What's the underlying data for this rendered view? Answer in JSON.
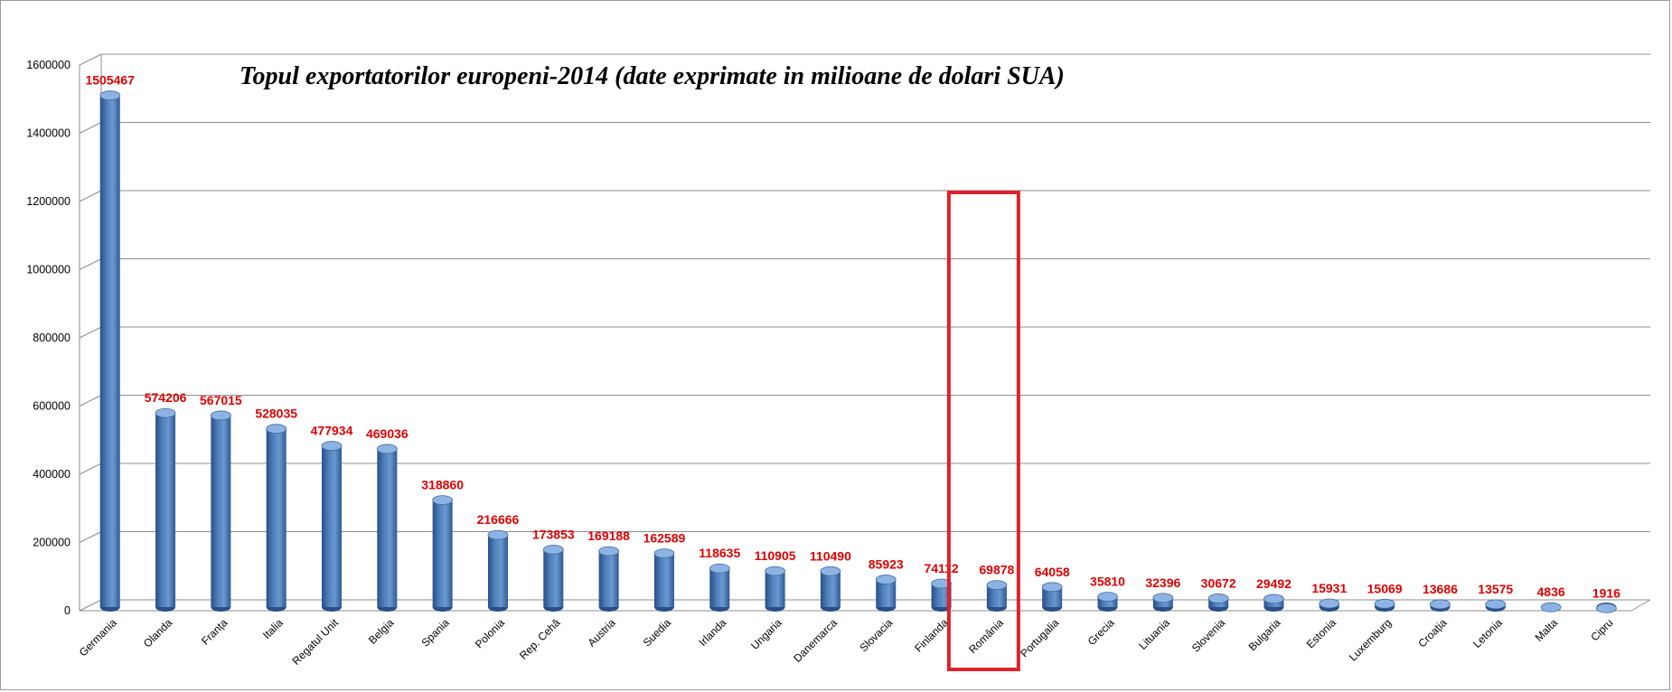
{
  "chart_data": {
    "type": "bar",
    "title": "Topul exportatorilor europeni-2014 (date exprimate in milioane de dolari SUA)",
    "xlabel": "",
    "ylabel": "",
    "ylim": [
      0,
      1600000
    ],
    "yticks": [
      "0",
      "200000",
      "400000",
      "600000",
      "800000",
      "1000000",
      "1200000",
      "1400000",
      "1600000"
    ],
    "categories": [
      "Germania",
      "Olanda",
      "Franța",
      "Italia",
      "Regatul Unit",
      "Belgia",
      "Spania",
      "Polonia",
      "Rep. Cehă",
      "Austria",
      "Suedia",
      "Irlanda",
      "Ungaria",
      "Danemarca",
      "Slovacia",
      "Finlanda",
      "România",
      "Portugalia",
      "Grecia",
      "Lituania",
      "Slovenia",
      "Bulgaria",
      "Estonia",
      "Luxemburg",
      "Croația",
      "Letonia",
      "Malta",
      "Cipru"
    ],
    "values": [
      1505467,
      574206,
      567015,
      528035,
      477934,
      469036,
      318860,
      216666,
      173853,
      169188,
      162589,
      118635,
      110905,
      110490,
      85923,
      74112,
      69878,
      64058,
      35810,
      32396,
      30672,
      29492,
      15931,
      15069,
      13686,
      13575,
      4836,
      1916
    ],
    "data_labels": [
      "1505467",
      "574206",
      "567015",
      "528035",
      "477934",
      "469036",
      "318860",
      "216666",
      "173853",
      "169188",
      "162589",
      "118635",
      "110905",
      "110490",
      "85923",
      "74112",
      "69878",
      "64058",
      "35810",
      "32396",
      "30672",
      "29492",
      "15931",
      "15069",
      "13686",
      "13575",
      "4836",
      "1916"
    ],
    "highlight_category": "România",
    "grid": true,
    "legend": "none",
    "style": "3d-cylinder",
    "colors": {
      "bar": "#4f81bd",
      "bar_dark": "#2a4f86",
      "bar_light": "#8db3e2",
      "data_label": "#e00000",
      "highlight_box": "#e0202a",
      "gridline": "#8c8c8c"
    }
  }
}
